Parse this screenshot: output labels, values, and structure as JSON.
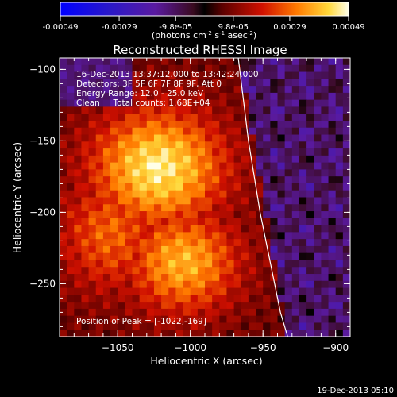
{
  "colorbar": {
    "tick_labels": [
      "-0.00049",
      "-0.00029",
      "-9.8e-05",
      "9.8e-05",
      "0.00029",
      "0.00049"
    ],
    "tick_values": [
      -0.00049,
      -0.00029,
      -9.8e-05,
      9.8e-05,
      0.00029,
      0.00049
    ],
    "range": [
      -0.00049,
      0.00049
    ],
    "units_base": "(photons cm",
    "units_sup1": "-2",
    "units_mid": " s",
    "units_sup2": "-1",
    "units_end": " asec",
    "units_sup3": "-2",
    "units_close": ")"
  },
  "chart_data": {
    "type": "heatmap",
    "title": "Reconstructed RHESSI Image",
    "xlabel": "Heliocentric X (arcsec)",
    "ylabel": "Heliocentric Y (arcsec)",
    "xlim": [
      -1090,
      -890
    ],
    "ylim": [
      -287,
      -92
    ],
    "x_ticks": [
      -1050,
      -1000,
      -950,
      -900
    ],
    "x_tick_labels": [
      "−1050",
      "−1000",
      "−950",
      "−900"
    ],
    "y_ticks": [
      -100,
      -150,
      -200,
      -250
    ],
    "y_tick_labels": [
      "−100",
      "−150",
      "−200",
      "−250"
    ],
    "grid": false,
    "peak": [
      -1022,
      -169
    ],
    "limb_points_x": [
      -967,
      -960,
      -952,
      -944,
      -938,
      -933
    ],
    "limb_points_y": [
      -92,
      -150,
      -200,
      -240,
      -270,
      -287
    ],
    "annotations": [
      "16-Dec-2013 13:37:12.000 to 13:42:24.000",
      "Detectors: 3F 5F 6F 7F 8F 9F, Att 0",
      "Energy Range: 12.0 - 25.0 keV",
      "Clean     Total counts: 1.68E+04"
    ],
    "peak_label": "Position of Peak = [-1022,-169]"
  },
  "footer": {
    "timestamp": "19-Dec-2013 05:10"
  }
}
